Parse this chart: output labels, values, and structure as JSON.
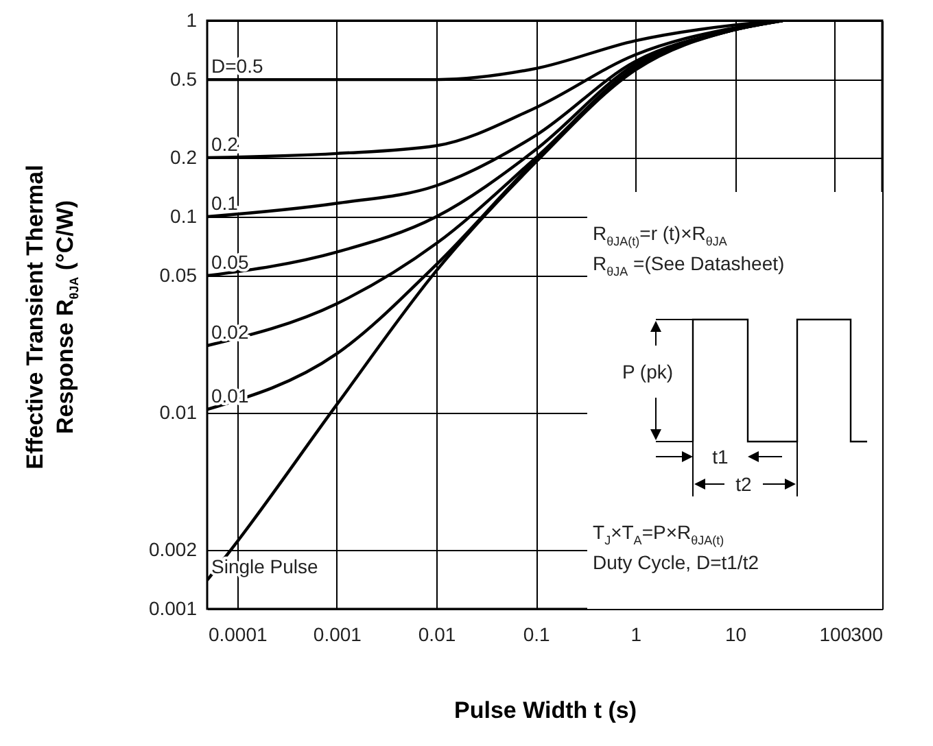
{
  "chart_data": {
    "type": "line",
    "xlabel": "Pulse Width t (s)",
    "ylabel": "Effective Transient Thermal Response R$_{θJA}$ (°C/W)",
    "log": "xy",
    "grid": true,
    "line_style": "solid",
    "xlim": [
      5e-05,
      300
    ],
    "xticks": [
      0.0001,
      0.001,
      0.01,
      0.1,
      1,
      10,
      100,
      300
    ],
    "ylim": [
      0.001,
      1
    ],
    "yticks": [
      0.001,
      0.002,
      0.01,
      0.05,
      0.1,
      0.2,
      0.5,
      1
    ],
    "series": [
      {
        "name": "D=0.5",
        "color": "#000000",
        "x": [
          5e-05,
          0.001,
          0.01,
          0.1,
          1,
          10,
          30
        ],
        "values": [
          0.5,
          0.5,
          0.5,
          0.57,
          0.79,
          0.95,
          1
        ]
      },
      {
        "name": "0.2",
        "color": "#000000",
        "x": [
          5e-05,
          0.001,
          0.01,
          0.1,
          1,
          10,
          30
        ],
        "values": [
          0.2,
          0.21,
          0.23,
          0.36,
          0.67,
          0.92,
          1
        ]
      },
      {
        "name": "0.1",
        "color": "#000000",
        "x": [
          5e-05,
          0.001,
          0.01,
          0.1,
          1,
          10,
          30
        ],
        "values": [
          0.1,
          0.117,
          0.144,
          0.26,
          0.62,
          0.9,
          1
        ]
      },
      {
        "name": "0.05",
        "color": "#000000",
        "x": [
          5e-05,
          0.001,
          0.01,
          0.1,
          1,
          10,
          30
        ],
        "values": [
          0.05,
          0.066,
          0.1,
          0.22,
          0.6,
          0.9,
          1
        ]
      },
      {
        "name": "0.02",
        "color": "#000000",
        "x": [
          5e-05,
          0.001,
          0.01,
          0.1,
          1,
          10,
          30
        ],
        "values": [
          0.022,
          0.036,
          0.073,
          0.2,
          0.58,
          0.9,
          1
        ]
      },
      {
        "name": "0.01",
        "color": "#000000",
        "x": [
          5e-05,
          0.001,
          0.01,
          0.1,
          1,
          10,
          30
        ],
        "values": [
          0.0104,
          0.02,
          0.057,
          0.195,
          0.57,
          0.9,
          1
        ]
      },
      {
        "name": "Single Pulse",
        "color": "#000000",
        "x": [
          5e-05,
          0.0001,
          0.001,
          0.01,
          0.1,
          1,
          10,
          30
        ],
        "values": [
          0.0014,
          0.0022,
          0.011,
          0.053,
          0.19,
          0.56,
          0.9,
          1
        ]
      }
    ],
    "annotations": [
      "R$_{θJA(t)}$=r (t)×R$_{θJA}$",
      "R$_{θJA}$ =(See Datasheet)",
      "P (pk)",
      "t1",
      "t2",
      "T$_{J}$×T$_{A}$=P×R$_{θJA(t)}$",
      "Duty Cycle, D=t1/t2"
    ]
  }
}
